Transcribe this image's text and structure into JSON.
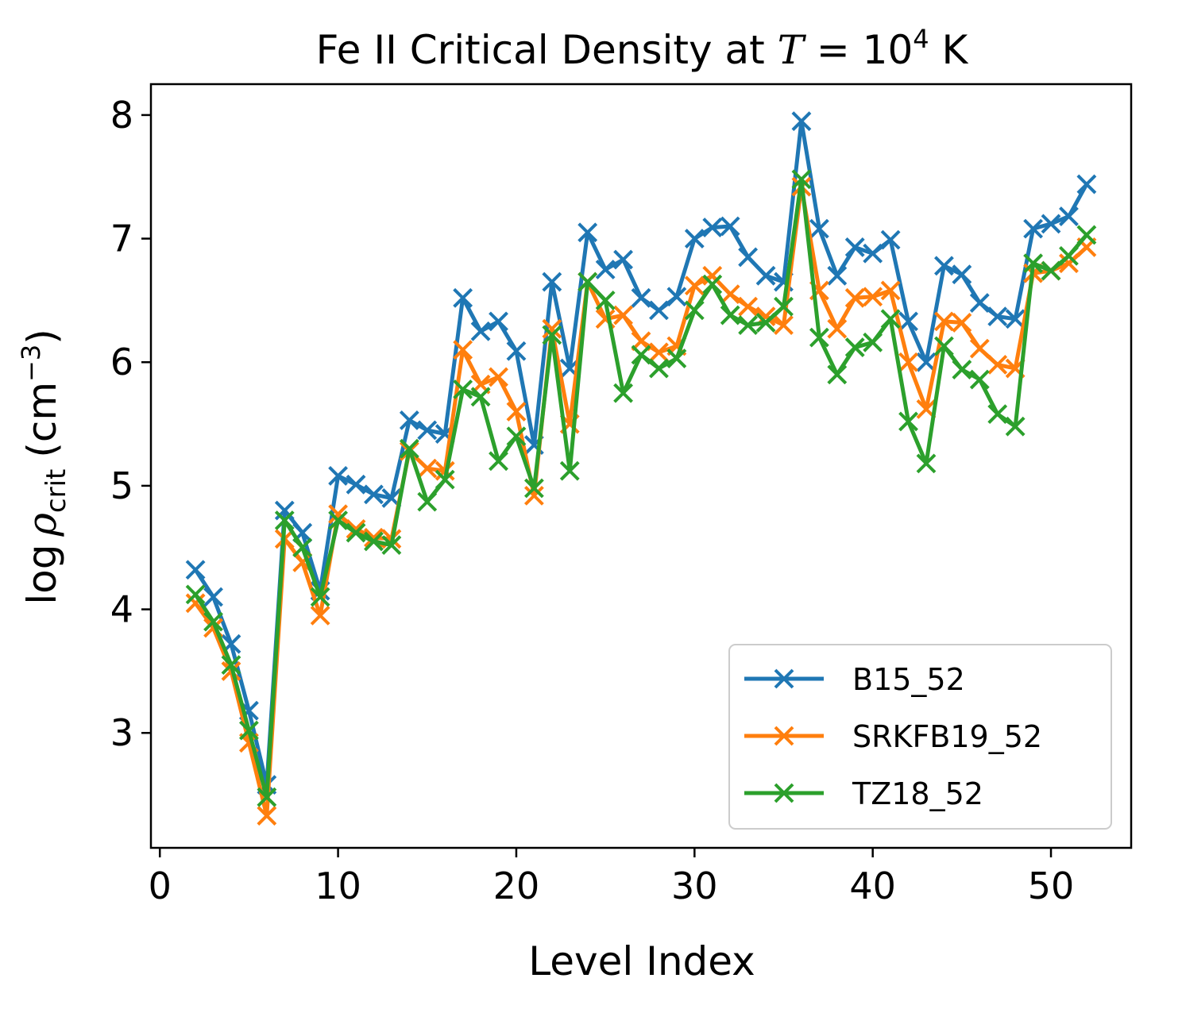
{
  "chart_data": {
    "type": "line",
    "title_prefix": "Fe II Critical Density at ",
    "title_math_var": "T",
    "title_math_eq": " = 10",
    "title_math_exp": "4",
    "title_unit": " K",
    "xlabel": "Level Index",
    "ylabel_prefix": "log",
    "ylabel_rho": "ρ",
    "ylabel_sub": "crit",
    "ylabel_unit": "(cm",
    "ylabel_exp": "−3",
    "ylabel_close": ")",
    "xlim": [
      -0.5,
      54.5
    ],
    "ylim": [
      2.07,
      8.25
    ],
    "xticks": [
      0,
      10,
      20,
      30,
      40,
      50
    ],
    "yticks": [
      3,
      4,
      5,
      6,
      7,
      8
    ],
    "legend_position": "lower-right",
    "x": [
      2,
      3,
      4,
      5,
      6,
      7,
      8,
      9,
      10,
      11,
      12,
      13,
      14,
      15,
      16,
      17,
      18,
      19,
      20,
      21,
      22,
      23,
      24,
      25,
      26,
      27,
      28,
      29,
      30,
      31,
      32,
      33,
      34,
      35,
      36,
      37,
      38,
      39,
      40,
      41,
      42,
      43,
      44,
      45,
      46,
      47,
      48,
      49,
      50,
      51,
      52
    ],
    "series": [
      {
        "name": "B15_52",
        "color": "#1f77b4",
        "values": [
          4.32,
          4.1,
          3.72,
          3.18,
          2.58,
          4.8,
          4.62,
          4.15,
          5.08,
          5.01,
          4.93,
          4.9,
          5.53,
          5.45,
          5.42,
          6.52,
          6.25,
          6.33,
          6.09,
          5.33,
          6.65,
          5.95,
          7.05,
          6.75,
          6.83,
          6.52,
          6.42,
          6.53,
          7.0,
          7.09,
          7.1,
          6.85,
          6.7,
          6.65,
          7.95,
          7.08,
          6.7,
          6.93,
          6.88,
          6.99,
          6.33,
          6.0,
          6.78,
          6.71,
          6.48,
          6.37,
          6.35,
          7.08,
          7.12,
          7.18,
          7.44
        ]
      },
      {
        "name": "SRKFB19_52",
        "color": "#ff7f0e",
        "values": [
          4.05,
          3.85,
          3.5,
          2.92,
          2.33,
          4.57,
          4.38,
          3.95,
          4.77,
          4.65,
          4.58,
          4.57,
          5.28,
          5.14,
          5.12,
          6.1,
          5.82,
          5.88,
          5.6,
          4.92,
          6.27,
          5.5,
          6.65,
          6.35,
          6.38,
          6.17,
          6.08,
          6.13,
          6.62,
          6.7,
          6.55,
          6.45,
          6.37,
          6.3,
          7.42,
          6.58,
          6.27,
          6.52,
          6.53,
          6.58,
          6.0,
          5.62,
          6.33,
          6.32,
          6.11,
          5.98,
          5.95,
          6.72,
          6.74,
          6.8,
          6.93
        ]
      },
      {
        "name": "TZ18_52",
        "color": "#2ca02c",
        "values": [
          4.12,
          3.9,
          3.55,
          3.02,
          2.48,
          4.72,
          4.5,
          4.1,
          4.72,
          4.62,
          4.55,
          4.52,
          5.3,
          4.87,
          5.05,
          5.78,
          5.72,
          5.2,
          5.4,
          4.98,
          6.22,
          5.12,
          6.65,
          6.5,
          5.75,
          6.06,
          5.95,
          6.03,
          6.42,
          6.63,
          6.38,
          6.3,
          6.32,
          6.45,
          7.48,
          6.2,
          5.9,
          6.12,
          6.16,
          6.35,
          5.52,
          5.18,
          6.13,
          5.94,
          5.86,
          5.58,
          5.48,
          6.8,
          6.74,
          6.86,
          7.03
        ]
      }
    ]
  }
}
